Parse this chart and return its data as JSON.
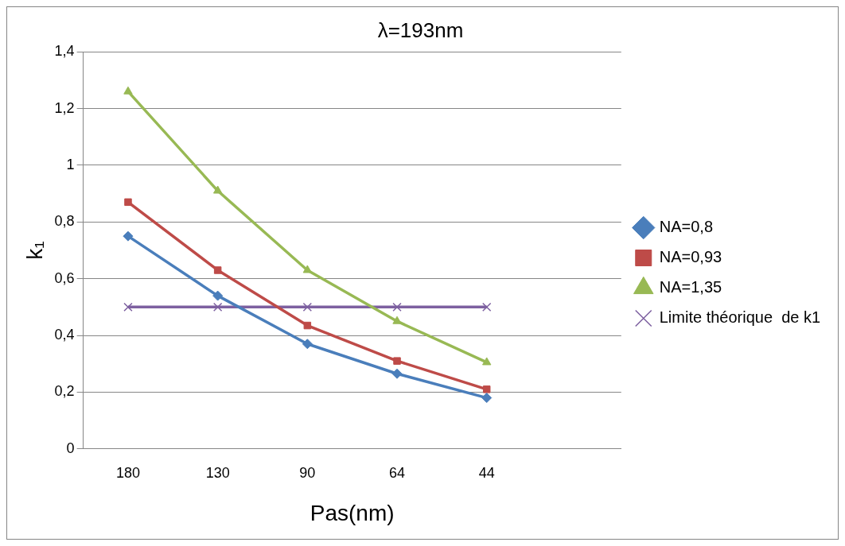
{
  "chart_data": {
    "type": "line",
    "title": "λ=193nm",
    "xlabel": "Pas(nm)",
    "ylabel": "k₁",
    "categories": [
      "180",
      "130",
      "90",
      "64",
      "44",
      null
    ],
    "ylim": [
      0,
      1.4
    ],
    "yticks": [
      {
        "value": 0,
        "label": "0"
      },
      {
        "value": 0.2,
        "label": "0,2"
      },
      {
        "value": 0.4,
        "label": "0,4"
      },
      {
        "value": 0.6,
        "label": "0,6"
      },
      {
        "value": 0.8,
        "label": "0,8"
      },
      {
        "value": 1,
        "label": "1"
      },
      {
        "value": 1.2,
        "label": "1,2"
      },
      {
        "value": 1.4,
        "label": "1,4"
      }
    ],
    "grid": "y",
    "legend": "right",
    "series": [
      {
        "name": "NA=0,8",
        "color": "#4a7ebb",
        "marker": "diamond",
        "values": [
          0.75,
          0.54,
          0.37,
          0.265,
          0.18,
          null
        ]
      },
      {
        "name": "NA=0,93",
        "color": "#be4b48",
        "marker": "square",
        "values": [
          0.87,
          0.63,
          0.435,
          0.31,
          0.21,
          null
        ]
      },
      {
        "name": "NA=1,35",
        "color": "#98b954",
        "marker": "triangle",
        "values": [
          1.26,
          0.91,
          0.63,
          0.45,
          0.305,
          null
        ]
      },
      {
        "name": "Limite théorique  de k1",
        "color": "#7d60a0",
        "marker": "cross",
        "values": [
          0.5,
          0.5,
          0.5,
          0.5,
          0.5,
          null
        ]
      }
    ]
  }
}
